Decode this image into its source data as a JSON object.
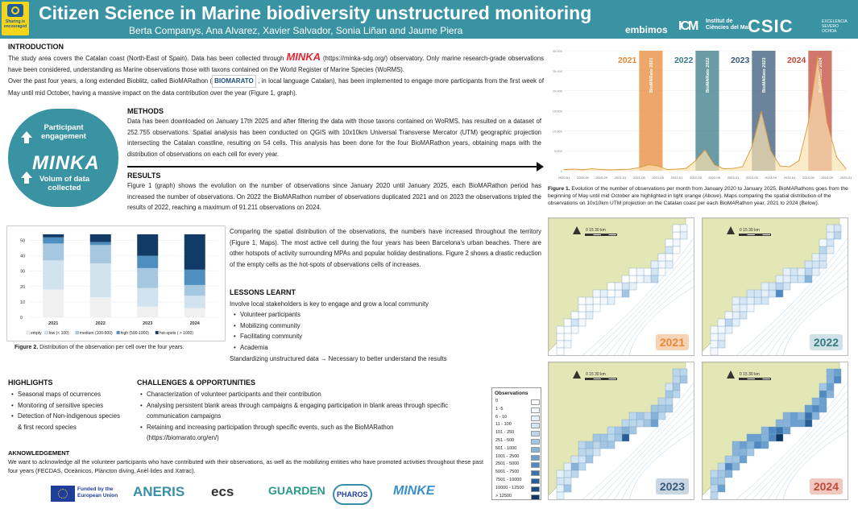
{
  "header": {
    "badge_text": "Sharing is encouraged",
    "title": "Citizen Science in Marine biodiversity unstructured monitoring",
    "authors": "Berta Companys, Ana Alvarez, Xavier Salvador, Sonia Liñan and Jaume Piera",
    "logos": {
      "embimos": "embimos",
      "icm_mark": "ICM",
      "icm": "Institut de Ciències del Mar",
      "csic": "CSIC",
      "excellence": "EXCELENCIA SEVERO OCHOA"
    }
  },
  "introduction": {
    "heading": "INTRODUCTION",
    "p1_a": "The study area covers the Catalan coast (North-East of Spain). Data has been collected through ",
    "minka_logo": "MINKA",
    "p1_b": " (https://minka-sdg.org/) observatory. Only marine research-grade observations have been considered, understanding as Marine observations those with taxons contained on the World Register of Marine Species (WoRMS).",
    "p2_a": "Over the past four years, a long extended Bioblitz, called BioMARathon (",
    "biomarato_logo": "BIOMARATO",
    "p2_b": " , in local language Catalan), has been implemented to engage more participants from the first week of May until mid October, having a massive impact on the data contribution over the year (Figure 1, graph)."
  },
  "circle": {
    "top": "Participant engagement",
    "middle": "MINKA",
    "bottom": "Volum of data collected"
  },
  "methods": {
    "heading": "METHODS",
    "text": "Data has been downloaded on January 17th 2025 and after filtering the data with those taxons contained on WoRMS, has resulted on a dataset of 252.755 observations. Spatial analysis has been conducted on QGIS with 10x10km Universal Transverse Mercator (UTM) geographic projection intersecting the Catalan coastline, resulting on 54 cells. This analysis has been done for the four BioMARathon years, obtaining maps with the distribution of observations on each cell for every year."
  },
  "results": {
    "heading": "RESULTS",
    "text": "Figure 1 (graph) shows the evolution on the number of observations since January 2020 until January 2025, each BioMARathon period has increased the number of observations. On 2022 the BioMARathon number of observations duplicated 2021 and on 2023 the observations tripled the results of 2022, reaching a maximum of 91.211 observations on 2024.",
    "text2": "Comparing the spatial distribution of the observations, the numbers have increased throughout the territory (Figure 1, Maps). The most active cell during the four years has been Barcelona's urban beaches. There are other hotspots of activity surrounding MPAs and popular holiday destinations. Figure 2 shows a drastic reduction of the empty cells as the hot-spots of observations cells of increases."
  },
  "lessons": {
    "heading": "LESSONS LEARNT",
    "intro": "Involve local stakeholders is key to engage and grow a local community",
    "items": [
      "Volunteer participants",
      "Mobilizing community",
      "Facilitating community",
      "Academia"
    ],
    "footer": "Standardizing unstructured data → Necessary to better understand the results"
  },
  "highlights": {
    "heading": "HIGHLIGHTS",
    "items": [
      "Seasonal maps of ocurrences",
      "Monitoring of sensitive species",
      "Detection of Non-indigenous species & first record species"
    ]
  },
  "challenges": {
    "heading": "CHALLENGES & OPPORTUNITIES",
    "items": [
      "Characterization of volunteer participants and their contribution",
      "Analysing persistent blank areas through campaigns & engaging participation in blank areas through specific communication campaigns",
      "Retaining and increasing participation through specific events, such as the BioMARathon (https://biomarato.org/en/)"
    ]
  },
  "acknowledgement": {
    "heading": "AKNOWLEDGEMENT",
    "text": "We want to acknowledge all the volunteer participants who have contributed with their observations, as well as the mobilizing entities who have promoted activities throughout these past four years (FECDAS, Oceànicos, Plàncton diving, Anèl·lides and Xatrac)."
  },
  "funders": {
    "eu": "Funded by the European Union",
    "aneris": "ANERIS",
    "ecs": "ecs",
    "guarden": "GUARDEN",
    "pharos": "PHAROS",
    "minke": "MINKE"
  },
  "figure1": {
    "caption_bold": "Figure 1.",
    "caption": " Evolution of the number of observations per month from January 2020 to January 2025. BioMARathons goes from the beginning of May until mid October are highlighted in light orange (Above). Maps comparing the spatial distribution of the observations on 10x10km UTM projection on the Catalan coast per each BioMARathon year, 2021 to 2024 (Below).",
    "map_scale": "0    15    30 km"
  },
  "figure2": {
    "caption_bold": "Figure 2.",
    "caption": " Distribution of the observation per cell over the four years."
  },
  "maps": [
    {
      "year": "2021",
      "color": "#e8893a",
      "bg": "#f7d3b5"
    },
    {
      "year": "2022",
      "color": "#3a7a86",
      "bg": "#cfe2e6"
    },
    {
      "year": "2023",
      "color": "#3a5a7a",
      "bg": "#c9d6e4"
    },
    {
      "year": "2024",
      "color": "#c24a3a",
      "bg": "#f0c8c0"
    }
  ],
  "legend": {
    "title": "Observations",
    "items": [
      {
        "label": "0",
        "color": "#ffffff"
      },
      {
        "label": "1 -5",
        "color": "#f4f8fc"
      },
      {
        "label": "6 - 10",
        "color": "#e6f0f8"
      },
      {
        "label": "11 - 100",
        "color": "#d4e5f3"
      },
      {
        "label": "101 - 250",
        "color": "#bcd6ec"
      },
      {
        "label": "251 - 500",
        "color": "#a3c6e3"
      },
      {
        "label": "501 - 1000",
        "color": "#87b3d9"
      },
      {
        "label": "1001 - 2500",
        "color": "#6c9fcd"
      },
      {
        "label": "2501 - 5000",
        "color": "#518ac0"
      },
      {
        "label": "5001 - 7500",
        "color": "#3a73ae"
      },
      {
        "label": "7501 - 10000",
        "color": "#285d98"
      },
      {
        "label": "10000 - 12500",
        "color": "#1b4a80"
      },
      {
        "label": "> 12500",
        "color": "#0f3766"
      }
    ]
  },
  "chart_data": [
    {
      "type": "line",
      "x": [
        "2020-01",
        "2020-03",
        "2020-05",
        "2020-07",
        "2020-09",
        "2020-11",
        "2021-01",
        "2021-03",
        "2021-05",
        "2021-07",
        "2021-09",
        "2021-11",
        "2022-01",
        "2022-03",
        "2022-05",
        "2022-07",
        "2022-09",
        "2022-11",
        "2023-01",
        "2023-03",
        "2023-05",
        "2023-07",
        "2023-09",
        "2023-11",
        "2024-01",
        "2024-03",
        "2024-05",
        "2024-07",
        "2024-09",
        "2024-11",
        "2025-01"
      ],
      "x_ticks": [
        "2020-01",
        "2020-05",
        "2020-09",
        "2021-01",
        "2021-05",
        "2021-09",
        "2022-01",
        "2022-05",
        "2022-09",
        "2023-01",
        "2023-05",
        "2023-09",
        "2024-01",
        "2024-05",
        "2024-09",
        "2025-01"
      ],
      "values": [
        300,
        400,
        250,
        500,
        300,
        200,
        300,
        400,
        800,
        1500,
        1200,
        300,
        400,
        600,
        2500,
        5200,
        1500,
        500,
        600,
        1000,
        6000,
        14800,
        5000,
        1200,
        1000,
        2500,
        12000,
        28500,
        12000,
        3500,
        500
      ],
      "ylim": [
        0,
        30000
      ],
      "yticks": [
        "0",
        "5.000",
        "10.000",
        "15.000",
        "20.000",
        "25.000",
        "30.000"
      ],
      "line_color": "#d79a3a",
      "fill_color": "#fbe3b0",
      "highlights": [
        {
          "label": "BioMARato 2021",
          "year": "2021",
          "start": "2021-05",
          "end": "2021-10",
          "color": "#e8893a"
        },
        {
          "label": "BioMARato 2022",
          "year": "2022",
          "start": "2022-05",
          "end": "2022-10",
          "color": "#3a7a86"
        },
        {
          "label": "BioMARato 2023",
          "year": "2023",
          "start": "2023-05",
          "end": "2023-10",
          "color": "#3a5a7a"
        },
        {
          "label": "BioMARato 2024",
          "year": "2024",
          "start": "2024-05",
          "end": "2024-10",
          "color": "#c24a3a"
        }
      ]
    },
    {
      "type": "bar",
      "stacked": true,
      "categories": [
        "2021",
        "2022",
        "2023",
        "2024"
      ],
      "ylim": [
        0,
        55
      ],
      "yticks": [
        0,
        10,
        20,
        30,
        40,
        50
      ],
      "series": [
        {
          "name": "empty",
          "color": "#f0f0f0",
          "values": [
            18,
            13,
            7,
            6
          ]
        },
        {
          "name": "low (< 100)",
          "color": "#d2e3f0",
          "values": [
            19,
            22,
            12,
            8
          ]
        },
        {
          "name": "medium (100-500)",
          "color": "#a5c7e0",
          "values": [
            11,
            12,
            13,
            7
          ]
        },
        {
          "name": "high (500-1000)",
          "color": "#4f8fbf",
          "values": [
            4,
            2,
            8,
            10
          ]
        },
        {
          "name": "hot-spots ( > 1000)",
          "color": "#113a66",
          "values": [
            2,
            5,
            14,
            23
          ]
        }
      ]
    }
  ]
}
